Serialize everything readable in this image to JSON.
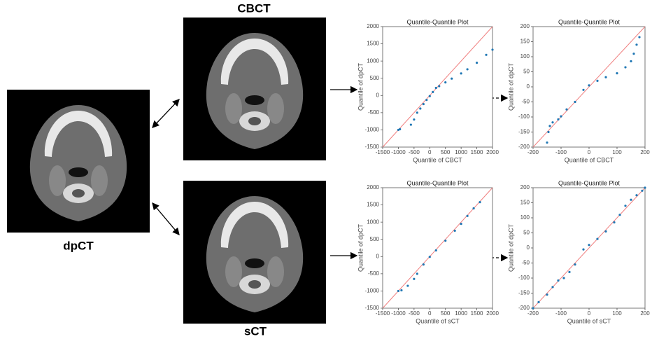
{
  "image_labels": {
    "cbct": "CBCT",
    "dpct": "dpCT",
    "sct": "sCT"
  },
  "chart_data": [
    {
      "type": "scatter",
      "title": "Quantile-Quantile Plot",
      "x_label": "Quantile of CBCT",
      "y_label": "Quantile of dpCT",
      "xlim": [
        -1500,
        2000
      ],
      "ylim": [
        -1500,
        2000
      ],
      "xticks": [
        -1500,
        -1000,
        -500,
        0,
        500,
        1000,
        1500,
        2000
      ],
      "yticks": [
        -1500,
        -1000,
        -500,
        0,
        500,
        1000,
        1500,
        2000
      ],
      "diagonal_color": "#f08080",
      "series": [
        {
          "color": "#1f77b4",
          "x": [
            -1000,
            -950,
            -600,
            -500,
            -400,
            -300,
            -200,
            -100,
            0,
            100,
            200,
            300,
            500,
            700,
            1000,
            1200,
            1500,
            1800,
            2000
          ],
          "values": [
            -1000,
            -980,
            -850,
            -700,
            -500,
            -380,
            -250,
            -130,
            -20,
            100,
            220,
            270,
            380,
            490,
            640,
            760,
            950,
            1180,
            1330
          ]
        }
      ]
    },
    {
      "type": "scatter",
      "title": "Quantile-Quantile Plot",
      "x_label": "Quantile of CBCT",
      "y_label": "Quantile of dpCT",
      "xlim": [
        -200,
        200
      ],
      "ylim": [
        -200,
        200
      ],
      "xticks": [
        -200,
        -100,
        0,
        100,
        200
      ],
      "yticks": [
        -200,
        -150,
        -100,
        -50,
        0,
        50,
        100,
        150,
        200
      ],
      "diagonal_color": "#f08080",
      "series": [
        {
          "color": "#1f77b4",
          "x": [
            -150,
            -145,
            -140,
            -130,
            -110,
            -100,
            -80,
            -50,
            -20,
            0,
            30,
            60,
            100,
            130,
            150,
            160,
            170,
            180
          ],
          "values": [
            -185,
            -150,
            -130,
            -118,
            -108,
            -98,
            -75,
            -50,
            -10,
            5,
            20,
            32,
            45,
            65,
            85,
            110,
            140,
            165
          ]
        }
      ]
    },
    {
      "type": "scatter",
      "title": "Quantile-Quantile Plot",
      "x_label": "Quantile of sCT",
      "y_label": "Quantile of dpCT",
      "xlim": [
        -1500,
        2000
      ],
      "ylim": [
        -1500,
        2000
      ],
      "xticks": [
        -1500,
        -1000,
        -500,
        0,
        500,
        1000,
        1500,
        2000
      ],
      "yticks": [
        -1500,
        -1000,
        -500,
        0,
        500,
        1000,
        1500,
        2000
      ],
      "diagonal_color": "#f08080",
      "series": [
        {
          "color": "#1f77b4",
          "x": [
            -1000,
            -900,
            -700,
            -500,
            -400,
            -200,
            0,
            200,
            500,
            800,
            1000,
            1200,
            1400,
            1600
          ],
          "values": [
            -1000,
            -980,
            -850,
            -650,
            -500,
            -230,
            -10,
            180,
            460,
            750,
            950,
            1180,
            1400,
            1580
          ]
        }
      ]
    },
    {
      "type": "scatter",
      "title": "Quantile-Quantile Plot",
      "x_label": "Quantile of sCT",
      "y_label": "Quantile of dpCT",
      "xlim": [
        -200,
        200
      ],
      "ylim": [
        -200,
        200
      ],
      "xticks": [
        -200,
        -100,
        0,
        100,
        200
      ],
      "yticks": [
        -200,
        -150,
        -100,
        -50,
        0,
        50,
        100,
        150,
        200
      ],
      "diagonal_color": "#f08080",
      "series": [
        {
          "color": "#1f77b4",
          "x": [
            -200,
            -180,
            -150,
            -130,
            -110,
            -90,
            -70,
            -50,
            -20,
            0,
            30,
            60,
            90,
            110,
            130,
            150,
            170,
            190,
            200
          ],
          "values": [
            -200,
            -180,
            -155,
            -130,
            -108,
            -100,
            -80,
            -55,
            -5,
            10,
            30,
            55,
            85,
            110,
            140,
            160,
            175,
            190,
            200
          ]
        }
      ]
    }
  ]
}
